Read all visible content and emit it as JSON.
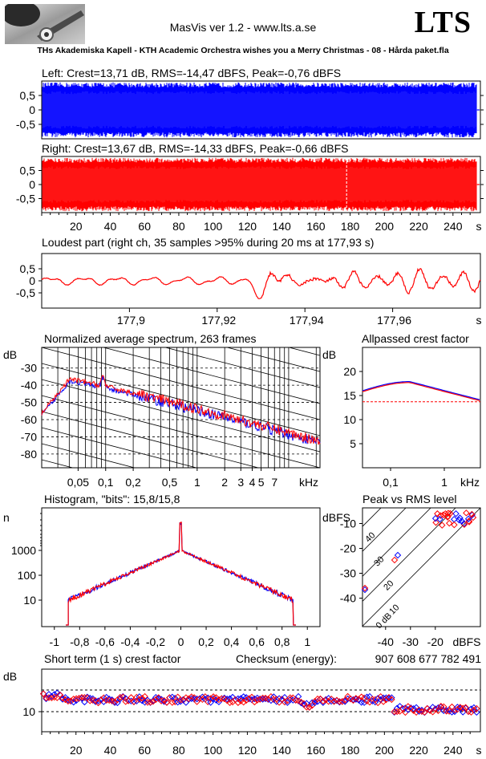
{
  "header": {
    "app_title": "MasVis ver 1.2 - www.lts.a.se",
    "logo_text": "LTS",
    "track_title": "THs Akademiska Kapell - KTH Academic Orchestra wishes you a Merry Christmas - 08 - Hårda paket.fla"
  },
  "colors": {
    "left": "#0000ff",
    "right": "#ff0000",
    "grid": "#000000"
  },
  "chart_data": [
    {
      "id": "left",
      "type": "area",
      "title": "Left: Crest=13,71 dB, RMS=-14,47 dBFS, Peak=-0,76 dBFS",
      "ylim": [
        -1,
        1
      ],
      "yticks": [
        "0.5",
        "0",
        "-0.5"
      ],
      "yticklabels": [
        "0,5",
        "0",
        "-0,5"
      ],
      "xlim": [
        0,
        256
      ],
      "duration_s": 254,
      "series": [
        {
          "color": "#0000ff"
        }
      ]
    },
    {
      "id": "right",
      "type": "area",
      "title": "Right: Crest=13,67 dB, RMS=-14,33 dBFS, Peak=-0,66 dBFS",
      "ylim": [
        -1,
        1
      ],
      "yticks": [
        "0.5",
        "0",
        "-0.5"
      ],
      "yticklabels": [
        "0,5",
        "0",
        "-0,5"
      ],
      "xlim": [
        0,
        256
      ],
      "xticks": [
        20,
        40,
        60,
        80,
        100,
        120,
        140,
        160,
        180,
        200,
        220,
        240
      ],
      "xticklabels": [
        "20",
        "40",
        "60",
        "80",
        "100",
        "120",
        "140",
        "160",
        "180",
        "200",
        "220",
        "240"
      ],
      "xunit": "s",
      "marker_x": 177.93,
      "series": [
        {
          "color": "#ff0000"
        }
      ]
    },
    {
      "id": "loudest",
      "type": "line",
      "title": "Loudest part (right ch, 35 samples >95% during 20 ms at 177,93 s)",
      "xlim": [
        177.88,
        177.98
      ],
      "ylim": [
        -1,
        1
      ],
      "xticks": [
        177.9,
        177.92,
        177.94,
        177.96
      ],
      "xticklabels": [
        "177,9",
        "177,92",
        "177,94",
        "177,96"
      ],
      "xunit": "s",
      "yticklabels": [
        "0,5",
        "0",
        "-0,5"
      ],
      "series": [
        {
          "color": "#ff0000"
        }
      ]
    },
    {
      "id": "spectrum",
      "type": "line",
      "title": "Normalized average spectrum, 263 frames",
      "ylabel": "dB",
      "yticks": [
        -30,
        -40,
        -50,
        -60,
        -70,
        -80
      ],
      "yticklabels": [
        "-30",
        "-40",
        "-50",
        "-60",
        "-70",
        "-80"
      ],
      "ylim": [
        -88,
        -18
      ],
      "xscale": "log",
      "xlim": [
        0.02,
        22
      ],
      "xticks": [
        0.05,
        0.1,
        0.2,
        0.5,
        1,
        2,
        3,
        4,
        5,
        7
      ],
      "xticklabels": [
        "0,05",
        "0,1",
        "0,2",
        "0,5",
        "1",
        "2",
        "3",
        "4",
        "5",
        "7"
      ],
      "xunit": "kHz",
      "series": [
        {
          "name": "",
          "color": "#0000ff"
        },
        {
          "name": "",
          "color": "#ff0000"
        }
      ]
    },
    {
      "id": "allpass",
      "type": "line",
      "title": "Allpassed crest factor",
      "ylabel": "dB",
      "yticks": [
        5,
        10,
        15,
        20
      ],
      "yticklabels": [
        "5",
        "10",
        "15",
        "20"
      ],
      "ylim": [
        0,
        25
      ],
      "xscale": "log",
      "xticklabels": [
        "0,1",
        "1"
      ],
      "xunit": "kHz",
      "reference_db": 13.7,
      "series": [
        {
          "color": "#0000ff"
        },
        {
          "color": "#ff0000"
        }
      ]
    },
    {
      "id": "histogram",
      "type": "line",
      "title": "Histogram, \"bits\": 15,8/15,8",
      "ylabel": "n",
      "yscale": "log",
      "yticklabels": [
        "1000",
        "100",
        "10"
      ],
      "xlim": [
        -1.1,
        1.1
      ],
      "xticks": [
        -1,
        -0.8,
        -0.6,
        -0.4,
        -0.2,
        0,
        0.2,
        0.4,
        0.6,
        0.8,
        1
      ],
      "xticklabels": [
        "-1",
        "-0,8",
        "-0,6",
        "-0,4",
        "-0,2",
        "0",
        "0,2",
        "0,4",
        "0,6",
        "0,8",
        "1"
      ],
      "series": [
        {
          "color": "#0000ff"
        },
        {
          "color": "#ff0000"
        }
      ]
    },
    {
      "id": "peakrms",
      "type": "scatter",
      "title": "Peak vs RMS level",
      "ylabel": "dBFS",
      "xunit": "dBFS",
      "yticks": [
        -10,
        -20,
        -30,
        -40
      ],
      "yticklabels": [
        "-10",
        "-20",
        "-30",
        "-40"
      ],
      "xticks": [
        -40,
        -30,
        -20
      ],
      "xticklabels": [
        "-40",
        "-30",
        "-20"
      ],
      "diagonal_labels": [
        "40",
        "30",
        "20",
        "10",
        "0 dB"
      ],
      "series": [
        {
          "color": "#0000ff"
        },
        {
          "color": "#ff0000"
        }
      ]
    },
    {
      "id": "shortterm",
      "type": "scatter",
      "title": "Short term (1 s) crest factor",
      "ylabel": "dB",
      "yticklabels": [
        "10"
      ],
      "xticks": [
        20,
        40,
        60,
        80,
        100,
        120,
        140,
        160,
        180,
        200,
        220,
        240
      ],
      "xticklabels": [
        "20",
        "40",
        "60",
        "80",
        "100",
        "120",
        "140",
        "160",
        "180",
        "200",
        "220",
        "240"
      ],
      "xunit": "s",
      "series": [
        {
          "color": "#0000ff"
        },
        {
          "color": "#ff0000"
        }
      ]
    }
  ],
  "checksum": {
    "label": "Checksum (energy):",
    "value": "907 608 677 782 491"
  }
}
